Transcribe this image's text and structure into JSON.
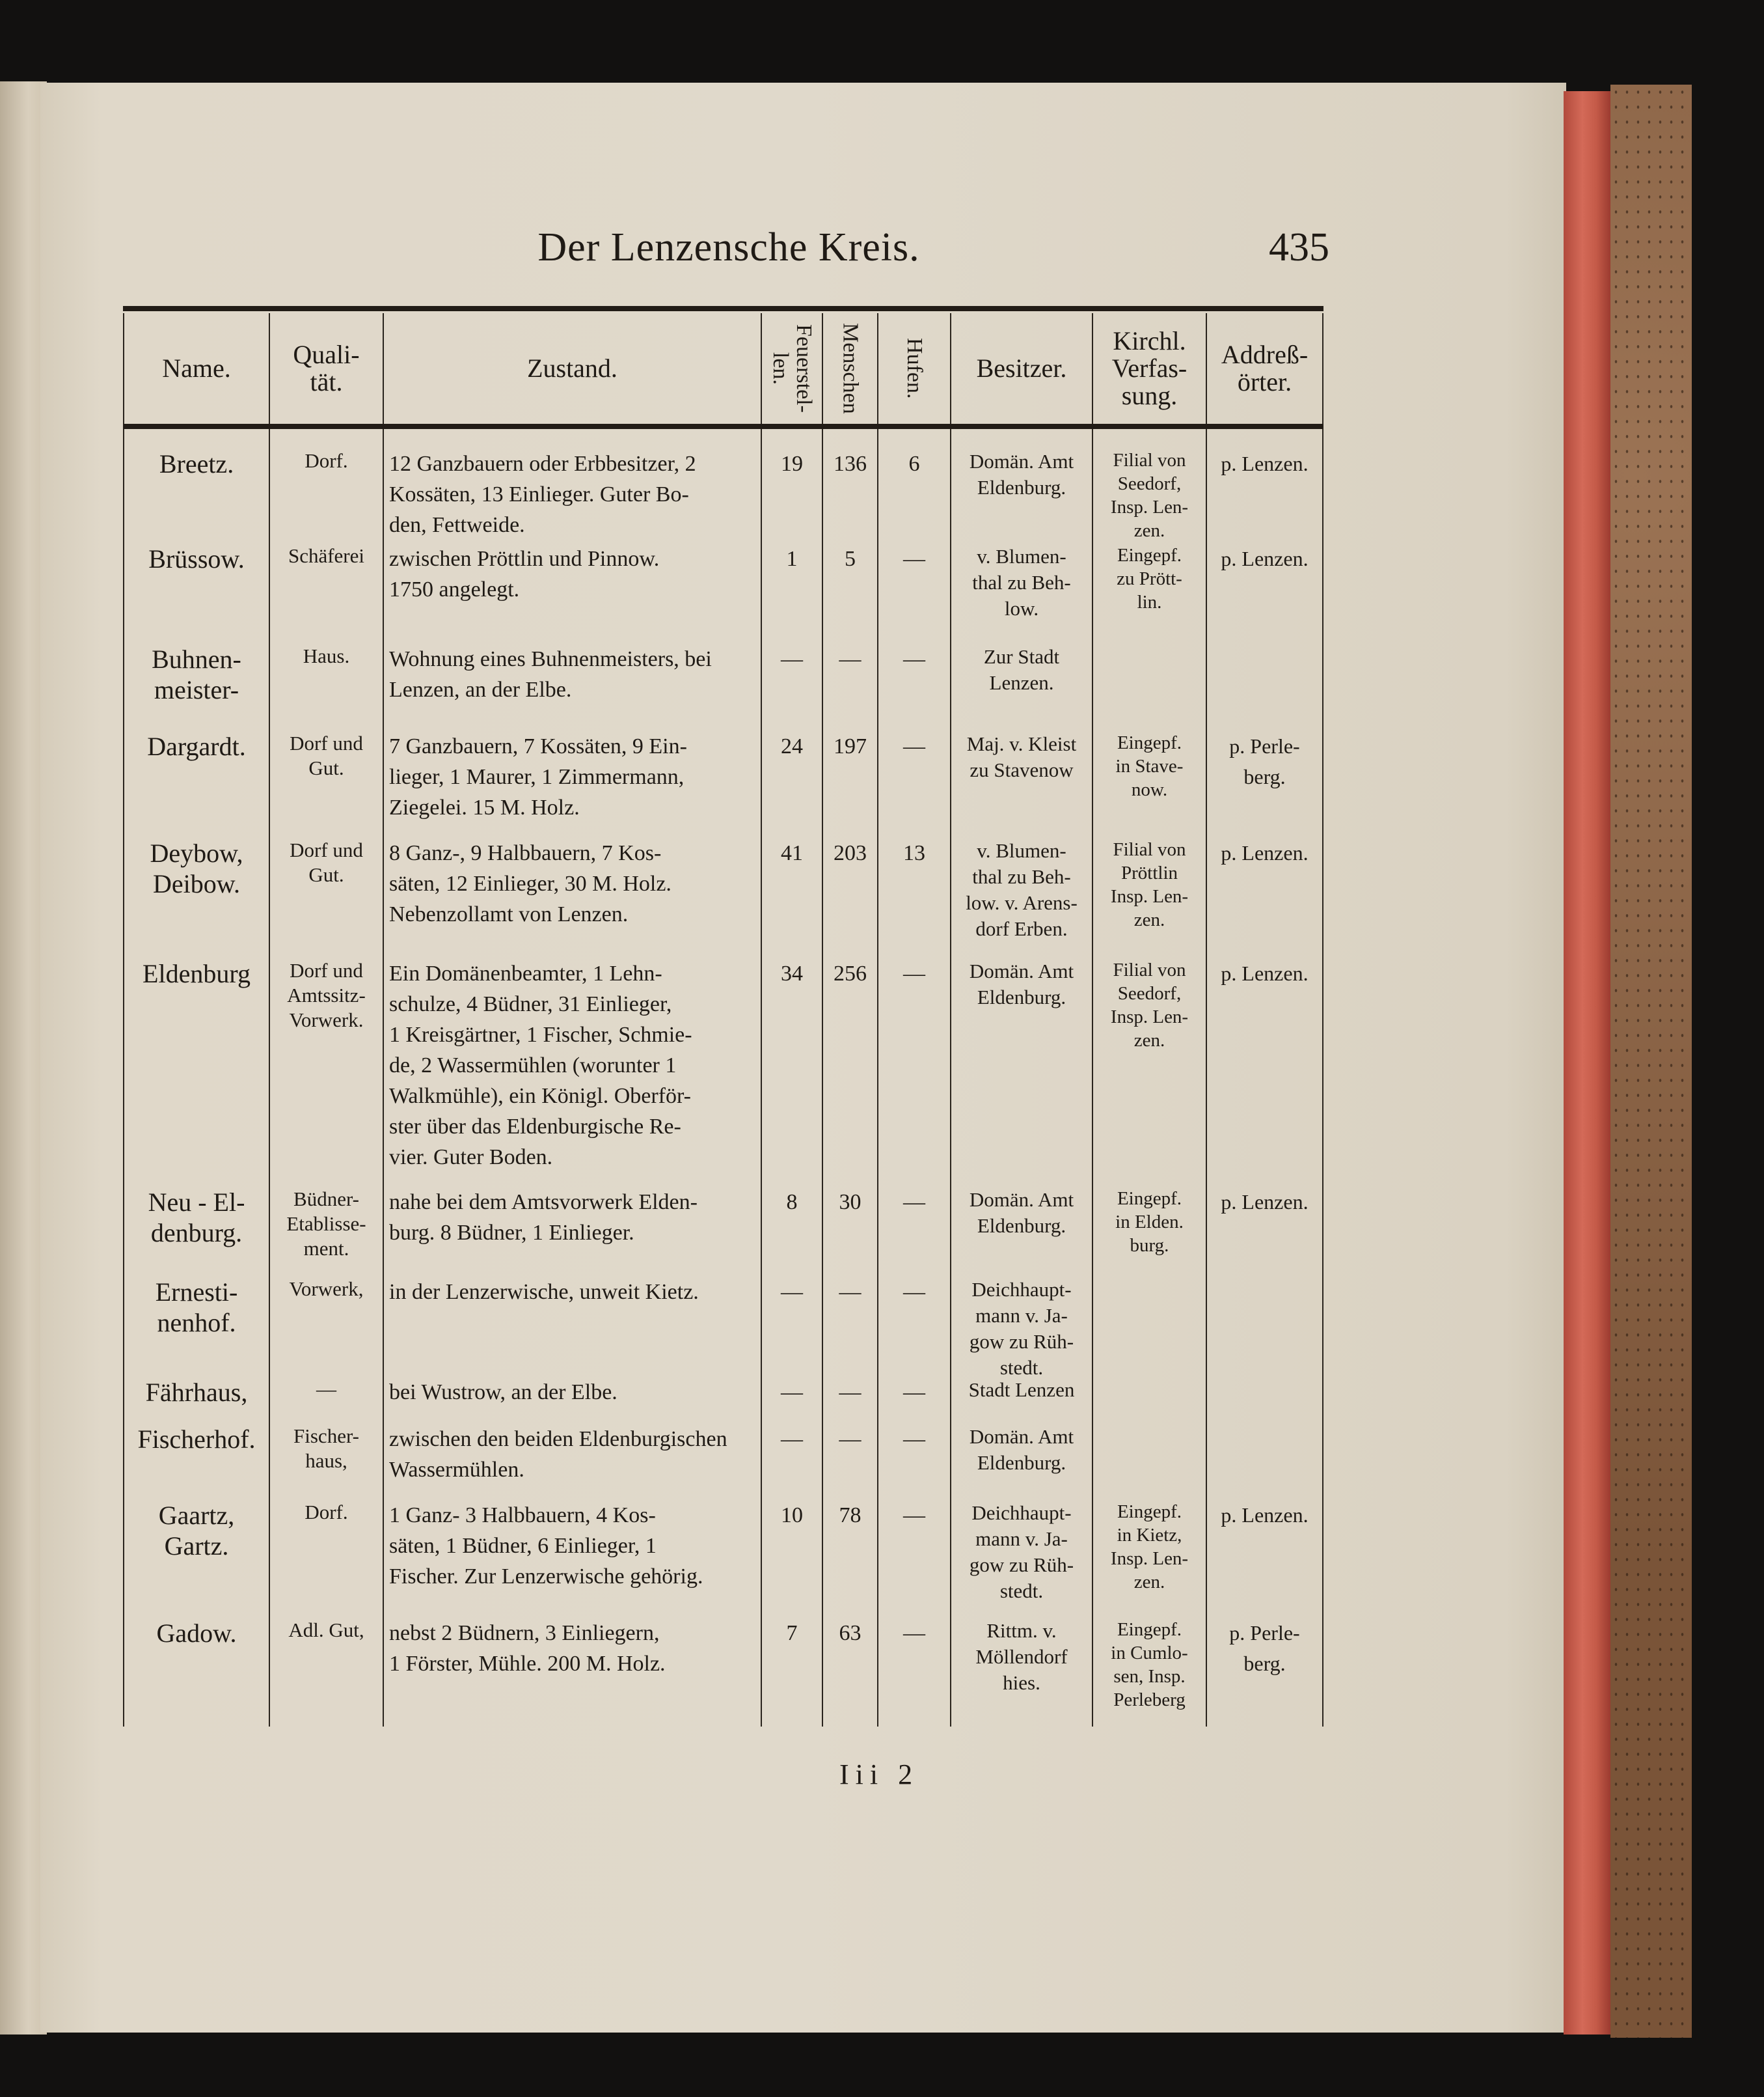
{
  "page": {
    "running_title": "Der Lenzensche Kreis.",
    "page_number": "435",
    "signature": "Iii 2"
  },
  "table": {
    "headers": [
      "Name.",
      "Quali-\ntät.",
      "Zustand.",
      "Feuerstel-\nlen.",
      "Menschen",
      "Hufen.",
      "Besitzer.",
      "Kirchl.\nVerfas-\nsung.",
      "Addreß-\nörter."
    ],
    "rows": [
      [
        "Breetz.",
        "Dorf.",
        "12 Ganzbauern oder Erbbesitzer, 2\nKossäten, 13 Einlieger. Guter Bo-\nden, Fettweide.",
        "19",
        "136",
        "6",
        "Domän. Amt\nEldenburg.",
        "Filial von\nSeedorf,\nInsp. Len-\nzen.",
        "p. Lenzen."
      ],
      [
        "Brüssow.",
        "Schäferei",
        "zwischen Pröttlin und Pinnow.\n1750 angelegt.",
        "1",
        "5",
        "—",
        "v. Blumen-\nthal zu Beh-\nlow.",
        "Eingepf.\nzu Prött-\nlin.",
        "p. Lenzen."
      ],
      [
        "Buhnen-\nmeister-",
        "Haus.",
        "Wohnung eines Buhnenmeisters, bei\nLenzen, an der Elbe.",
        "—",
        "—",
        "—",
        "Zur Stadt\nLenzen.",
        "",
        ""
      ],
      [
        "Dargardt.",
        "Dorf und\nGut.",
        "7 Ganzbauern, 7 Kossäten, 9 Ein-\nlieger, 1 Maurer, 1 Zimmermann,\nZiegelei. 15 M. Holz.",
        "24",
        "197",
        "—",
        "Maj. v. Kleist\nzu Stavenow",
        "Eingepf.\nin Stave-\nnow.",
        "p. Perle-\nberg."
      ],
      [
        "Deybow,\nDeibow.",
        "Dorf und\nGut.",
        "8 Ganz-, 9 Halbbauern, 7 Kos-\nsäten, 12 Einlieger, 30 M. Holz.\nNebenzollamt von Lenzen.",
        "41",
        "203",
        "13",
        "v. Blumen-\nthal zu Beh-\nlow. v. Arens-\ndorf Erben.",
        "Filial von\nPröttlin\nInsp. Len-\nzen.",
        "p. Lenzen."
      ],
      [
        "Eldenburg",
        "Dorf und\nAmtssitz-\nVorwerk.",
        "Ein Domänenbeamter, 1 Lehn-\nschulze, 4 Büdner, 31 Einlieger,\n1 Kreisgärtner, 1 Fischer, Schmie-\nde, 2 Wassermühlen (worunter 1\nWalkmühle), ein Königl. Oberför-\nster über das Eldenburgische Re-\nvier. Guter Boden.",
        "34",
        "256",
        "—",
        "Domän. Amt\nEldenburg.",
        "Filial von\nSeedorf,\nInsp. Len-\nzen.",
        "p. Lenzen."
      ],
      [
        "Neu - El-\ndenburg.",
        "Büdner-\nEtablisse-\nment.",
        "nahe bei dem Amtsvorwerk Elden-\nburg. 8 Büdner, 1 Einlieger.",
        "8",
        "30",
        "—",
        "Domän. Amt\nEldenburg.",
        "Eingepf.\nin Elden.\nburg.",
        "p. Lenzen."
      ],
      [
        "Ernesti-\nnenhof.",
        "Vorwerk,",
        "in der Lenzerwische, unweit Kietz.",
        "—",
        "—",
        "—",
        "Deichhaupt-\nmann v. Ja-\ngow zu Rüh-\nstedt.",
        "",
        ""
      ],
      [
        "Fährhaus,",
        "—",
        "bei Wustrow, an der Elbe.",
        "—",
        "—",
        "—",
        "Stadt Lenzen",
        "",
        ""
      ],
      [
        "Fischerhof.",
        "Fischer-\nhaus,",
        "zwischen den beiden Eldenburgischen\nWassermühlen.",
        "—",
        "—",
        "—",
        "Domän. Amt\nEldenburg.",
        "",
        ""
      ],
      [
        "Gaartz,\nGartz.",
        "Dorf.",
        "1 Ganz- 3 Halbbauern, 4 Kos-\nsäten, 1 Büdner, 6 Einlieger, 1\nFischer. Zur Lenzerwische gehörig.",
        "10",
        "78",
        "—",
        "Deichhaupt-\nmann v. Ja-\ngow zu Rüh-\nstedt.",
        "Eingepf.\nin Kietz,\nInsp. Len-\nzen.",
        "p. Lenzen."
      ],
      [
        "Gadow.",
        "Adl. Gut,",
        "nebst 2 Büdnern, 3 Einliegern,\n1 Förster, Mühle. 200 M. Holz.",
        "7",
        "63",
        "—",
        "Rittm. v.\nMöllendorf\nhies.",
        "Eingepf.\nin Cumlo-\nsen, Insp.\nPerleberg",
        "p. Perle-\nberg."
      ]
    ]
  }
}
